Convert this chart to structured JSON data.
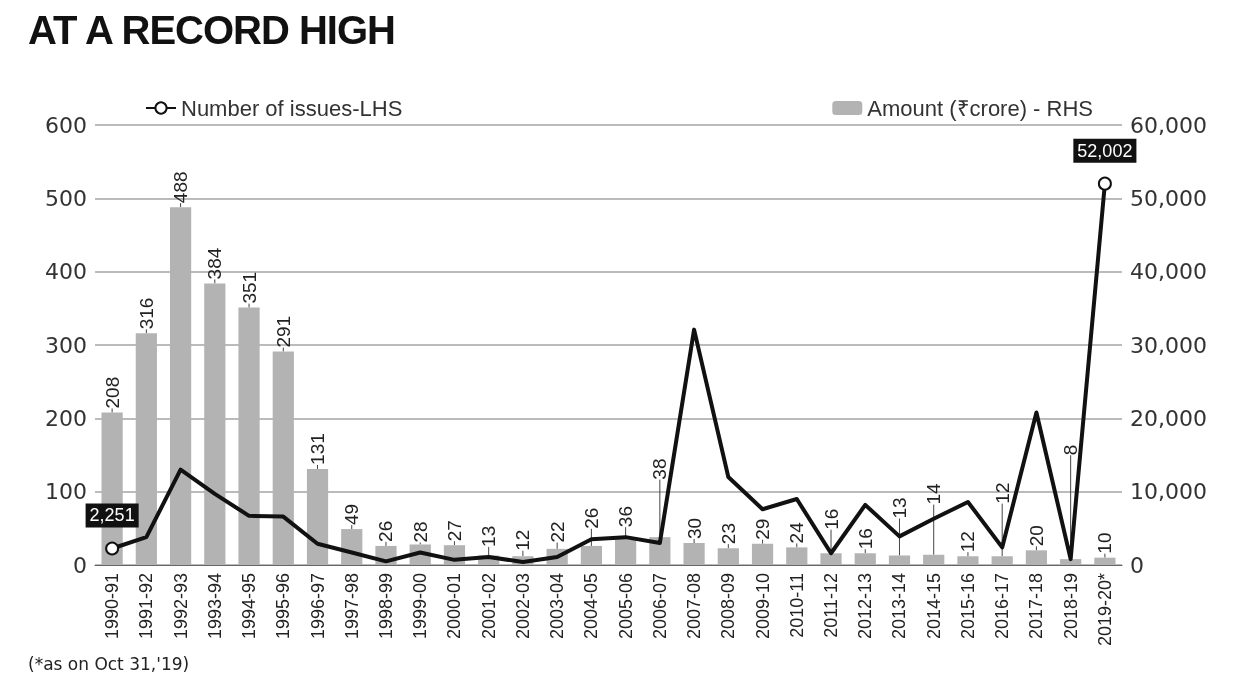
{
  "chart_data": {
    "type": "bar",
    "title": "AT A RECORD HIGH",
    "categories": [
      "1990-91",
      "1991-92",
      "1992-93",
      "1993-94",
      "1994-95",
      "1995-96",
      "1996-97",
      "1997-98",
      "1998-99",
      "1999-00",
      "2000-01",
      "2001-02",
      "2002-03",
      "2003-04",
      "2004-05",
      "2005-06",
      "2006-07",
      "2007-08",
      "2008-09",
      "2009-10",
      "2010-11",
      "2011-12",
      "2012-13",
      "2013-14",
      "2014-15",
      "2015-16",
      "2016-17",
      "2017-18",
      "2018-19",
      "2019-20*"
    ],
    "series": [
      {
        "name": "Amount (₹crore) - RHS",
        "color": "#b3b3b3",
        "values": [
          208,
          316,
          488,
          384,
          351,
          291,
          131,
          49,
          26,
          28,
          27,
          13,
          12,
          22,
          26,
          36,
          38,
          30,
          23,
          29,
          24,
          16,
          16,
          13,
          14,
          12,
          12,
          20,
          8,
          10
        ],
        "value_labels": [
          "208",
          "316",
          "488",
          "384",
          "351",
          "291",
          "131",
          "49",
          "26",
          "28",
          "27",
          "13",
          "12",
          "22",
          "26",
          "36",
          "38",
          "30",
          "23",
          "29",
          "24",
          "16",
          "16",
          "13",
          "14",
          "12",
          "12",
          "20",
          "8",
          "10"
        ]
      },
      {
        "name": "Number of issues-LHS",
        "type": "line",
        "axis": "y2",
        "color": "#111111",
        "values": [
          2251,
          3800,
          13000,
          9700,
          6700,
          6600,
          2900,
          1700,
          500,
          1700,
          700,
          1100,
          400,
          1100,
          3500,
          3800,
          3000,
          32100,
          12000,
          7600,
          9000,
          1600,
          8200,
          3900,
          6300,
          8600,
          2400,
          20800,
          800,
          52002
        ],
        "value_labels": [
          "2,251",
          null,
          null,
          null,
          null,
          null,
          null,
          null,
          null,
          null,
          null,
          null,
          null,
          null,
          null,
          null,
          null,
          null,
          null,
          null,
          null,
          null,
          null,
          null,
          null,
          null,
          null,
          null,
          null,
          "52,002"
        ]
      }
    ],
    "ylim": [
      0,
      600
    ],
    "yticks": [
      0,
      100,
      200,
      300,
      400,
      500,
      600
    ],
    "y2lim": [
      0,
      60000
    ],
    "y2ticks": [
      {
        "value": 0,
        "label": "0"
      },
      {
        "value": 10000,
        "label": "10,000"
      },
      {
        "value": 20000,
        "label": "20,000"
      },
      {
        "value": 30000,
        "label": "30,000"
      },
      {
        "value": 40000,
        "label": "40,000"
      },
      {
        "value": 50000,
        "label": "50,000"
      },
      {
        "value": 60000,
        "label": "60,000"
      }
    ],
    "grid": "y",
    "legend": "top",
    "annotations": [
      "(*as on Oct 31,'19)"
    ]
  }
}
